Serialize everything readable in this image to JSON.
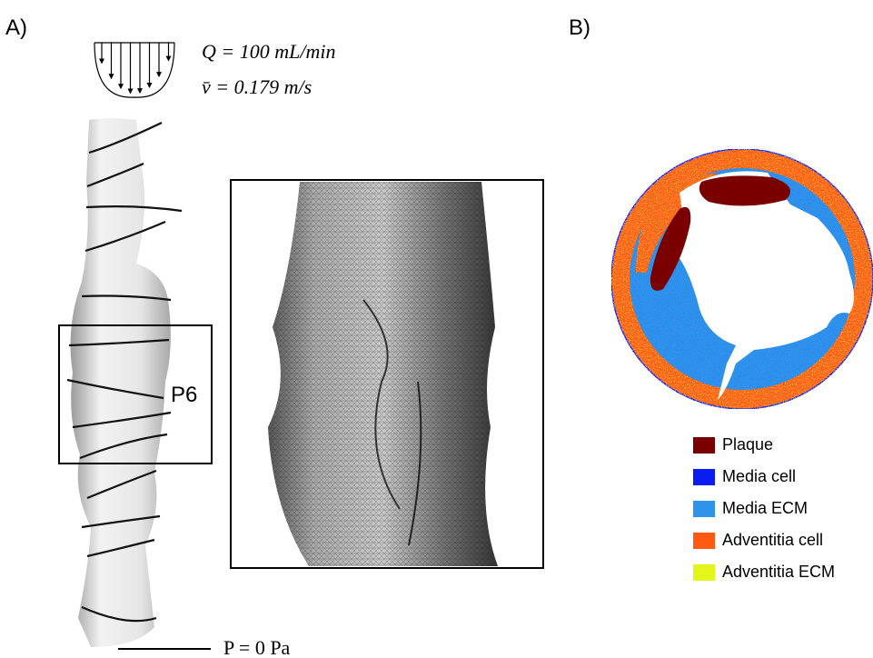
{
  "panel_a": {
    "label": "A)",
    "inlet": {
      "flow": "Q  = 100 mL/min",
      "velocity": "v̄  = 0.179 m/s"
    },
    "region": "P6",
    "outlet": "P = 0 Pa"
  },
  "panel_b": {
    "label": "B)",
    "legend": [
      {
        "name": "Plaque",
        "color": "#7a0000"
      },
      {
        "name": "Media cell",
        "color": "#0a1cf0"
      },
      {
        "name": "Media ECM",
        "color": "#2f93ea"
      },
      {
        "name": "Adventitia cell",
        "color": "#ff5a14"
      },
      {
        "name": "Adventitia ECM",
        "color": "#e4f51c"
      }
    ]
  }
}
